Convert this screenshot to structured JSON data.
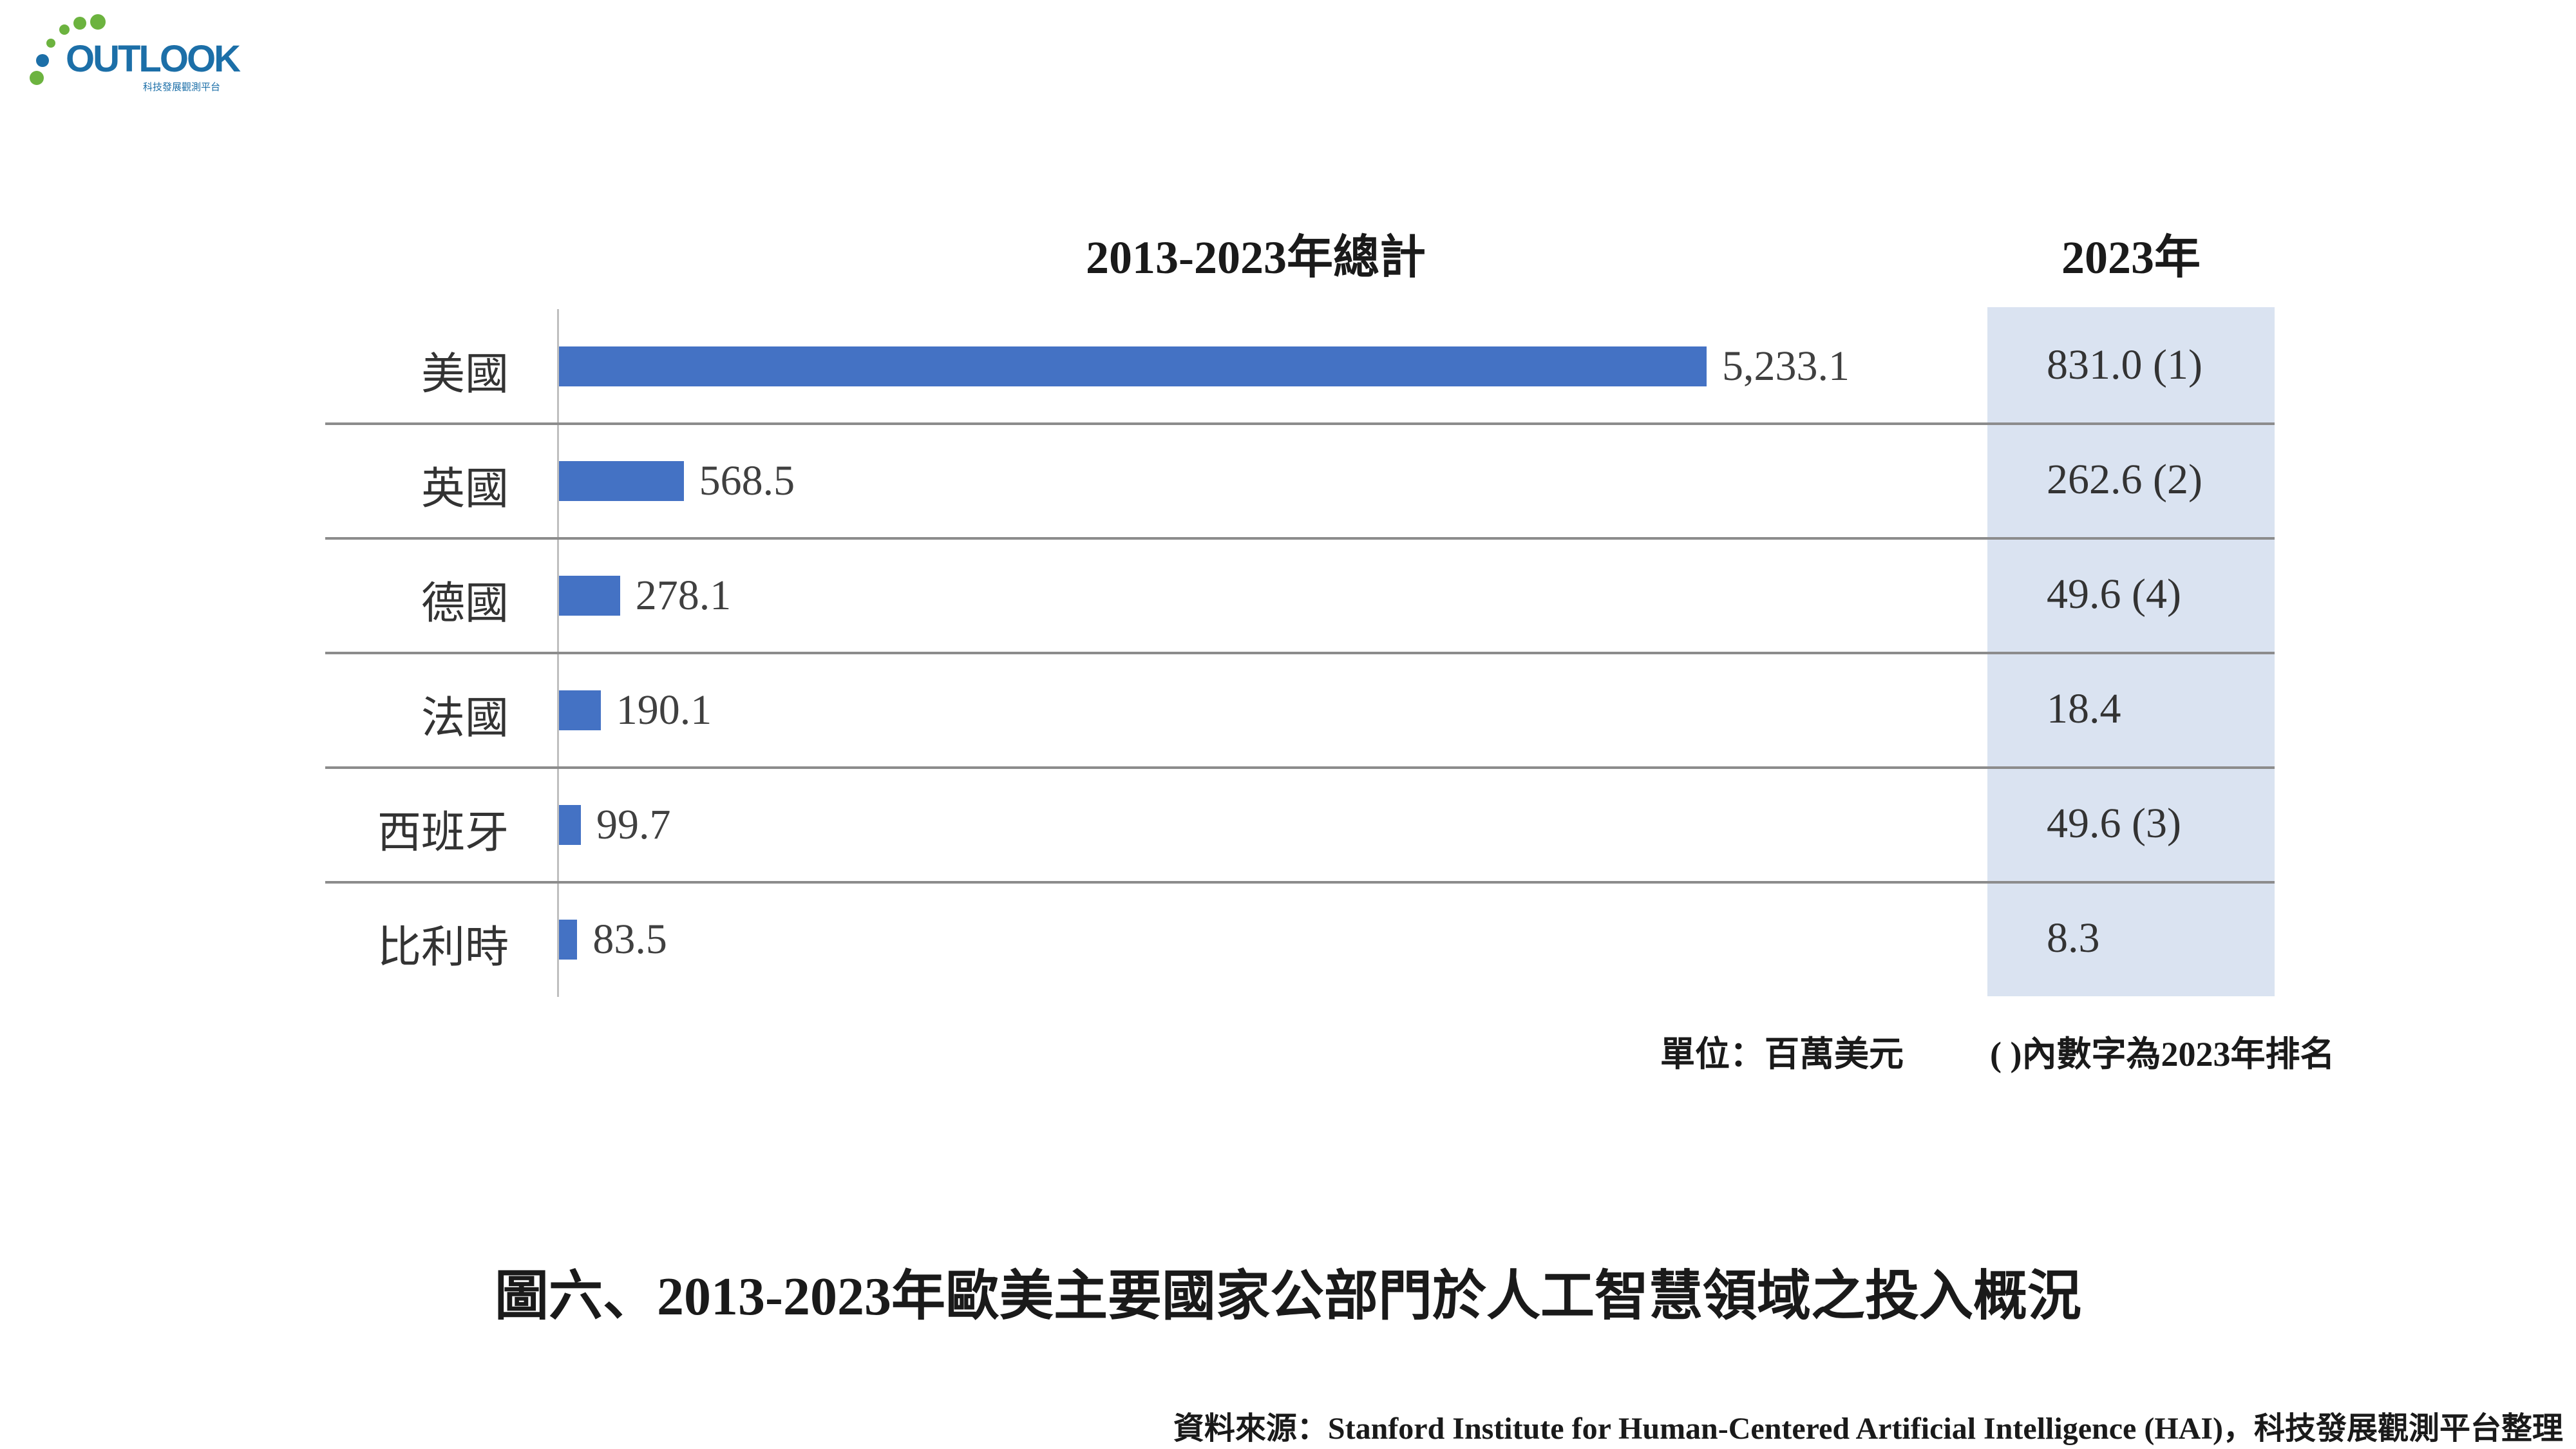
{
  "logo": {
    "word": "OUTLOOK",
    "subtitle": "科技發展觀測平台"
  },
  "chart_data": {
    "type": "bar",
    "orientation": "horizontal",
    "header_total": "2013-2023年總計",
    "header_year": "2023年",
    "categories": [
      "美國",
      "英國",
      "德國",
      "法國",
      "西班牙",
      "比利時"
    ],
    "values": [
      5233.1,
      568.5,
      278.1,
      190.1,
      99.7,
      83.5
    ],
    "value_labels": [
      "5,233.1",
      "568.5",
      "278.1",
      "190.1",
      "99.7",
      "83.5"
    ],
    "values_2023_labels": [
      "831.0 (1)",
      "262.6 (2)",
      "49.6 (4)",
      "18.4",
      "49.6 (3)",
      "8.3"
    ],
    "values_2023": [
      831.0,
      262.6,
      49.6,
      18.4,
      49.6,
      8.3
    ],
    "ranks_2023": [
      1,
      2,
      4,
      null,
      3,
      null
    ],
    "bar_color": "#4472c4",
    "panel_color": "#dae3f1",
    "xlim": [
      0,
      5233.1
    ],
    "grid": false
  },
  "notes": {
    "unit": "單位：百萬美元",
    "rank": "( )內數字為2023年排名"
  },
  "caption": "圖六、2013-2023年歐美主要國家公部門於人工智慧領域之投入概況",
  "source": "資料來源：Stanford Institute for Human-Centered Artificial Intelligence (HAI)，科技發展觀測平台整理"
}
